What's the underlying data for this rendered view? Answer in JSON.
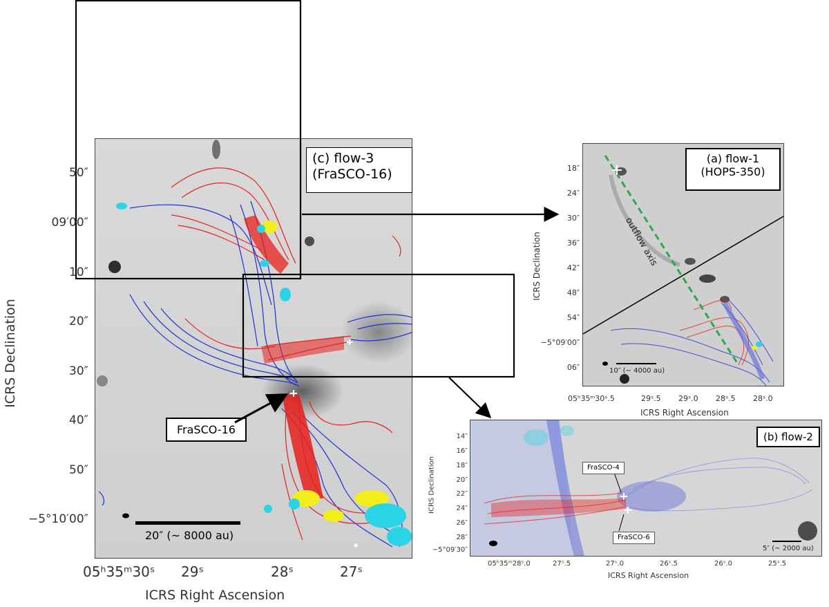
{
  "panel_c": {
    "title_line1": "(c) flow-3",
    "title_line2": "(FraSCO-16)",
    "source_label": "FraSCO-16",
    "scale_label": "20″ (~ 8000 au)",
    "x_axis_title": "ICRS Right Ascension",
    "y_axis_title": "ICRS Declination",
    "x_ticks": [
      "05ʰ35ᵐ30ˢ",
      "29ˢ",
      "28ˢ",
      "27ˢ"
    ],
    "y_ticks": [
      "50″",
      "09′00″",
      "10″",
      "20″",
      "30″",
      "40″",
      "50″",
      "−5°10′00″"
    ]
  },
  "panel_a": {
    "title_line1": "(a) flow-1",
    "title_line2": "(HOPS-350)",
    "axis_annotation": "outflow axis",
    "scale_label": "10″ (~ 4000 au)",
    "x_axis_title": "ICRS Right Ascension",
    "y_axis_title": "ICRS Declination",
    "x_ticks": [
      "05ʰ35ᵐ30ˢ.5",
      "29ˢ.5",
      "29ˢ.0",
      "28ˢ.5",
      "28ˢ.0"
    ],
    "y_ticks": [
      "18″",
      "24″",
      "30″",
      "36″",
      "42″",
      "48″",
      "54″",
      "−5°09′00″",
      "06″"
    ]
  },
  "panel_b": {
    "title": "(b) flow-2",
    "source_label_1": "FraSCO-4",
    "source_label_2": "FraSCO-6",
    "scale_label": "5″ (~ 2000 au)",
    "x_axis_title": "ICRS Right Ascension",
    "y_axis_title": "ICRS Declination",
    "x_ticks": [
      "05ʰ35ᵐ28ˢ.0",
      "27ˢ.5",
      "27ˢ.0",
      "26ˢ.5",
      "26ˢ.0",
      "25ˢ.5"
    ],
    "y_ticks": [
      "14″",
      "16″",
      "18″",
      "20″",
      "22″",
      "24″",
      "26″",
      "28″",
      "−5°09′30″"
    ]
  },
  "colors": {
    "redshifted": "#e8201c",
    "blueshifted": "#1f2fd6",
    "cyan": "#2ad4e6",
    "yellow": "#f2ee1a",
    "dashed_axis": "#2aa94a"
  }
}
